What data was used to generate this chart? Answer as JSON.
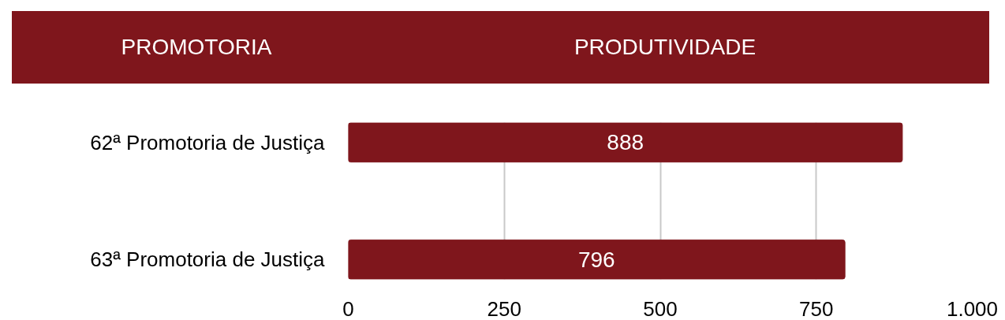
{
  "chart_data": {
    "type": "bar",
    "orientation": "horizontal",
    "title": "PRODUTIVIDADE",
    "ylabel": "PROMOTORIA",
    "categories": [
      "62ª Promotoria de Justiça",
      "63ª Promotoria de Justiça"
    ],
    "values": [
      888,
      796
    ],
    "color": "#7f161c",
    "xlim": [
      0,
      1000
    ],
    "xticks": [
      0,
      250,
      500,
      750,
      {
        "value": 1000,
        "label": "1.000"
      }
    ],
    "grid": "x",
    "data_labels": true
  }
}
